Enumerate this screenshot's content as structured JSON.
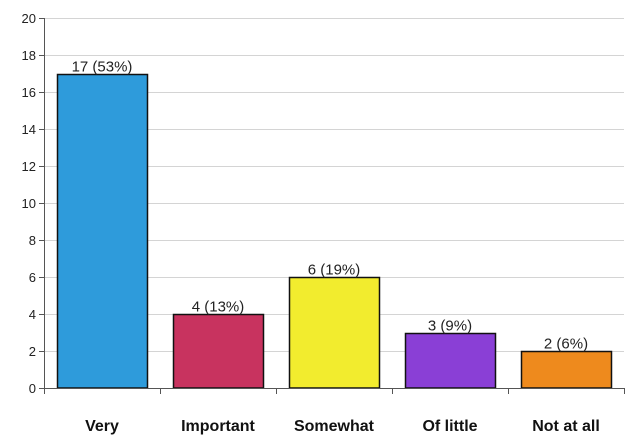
{
  "chart_data": {
    "type": "bar",
    "categories": [
      "Very",
      "Important",
      "Somewhat",
      "Of little",
      "Not at all"
    ],
    "values": [
      17,
      4,
      6,
      3,
      2
    ],
    "data_labels": [
      "17 (53%)",
      "4 (13%)",
      "6 (19%)",
      "3 (9%)",
      "2 (6%)"
    ],
    "colors": [
      "#2E9BDB",
      "#C8335F",
      "#F2EC2E",
      "#8A3FD6",
      "#EE8A1D"
    ],
    "ylim": [
      0,
      20
    ],
    "yticks": [
      0,
      2,
      4,
      6,
      8,
      10,
      12,
      14,
      16,
      18,
      20
    ],
    "grid": true
  }
}
